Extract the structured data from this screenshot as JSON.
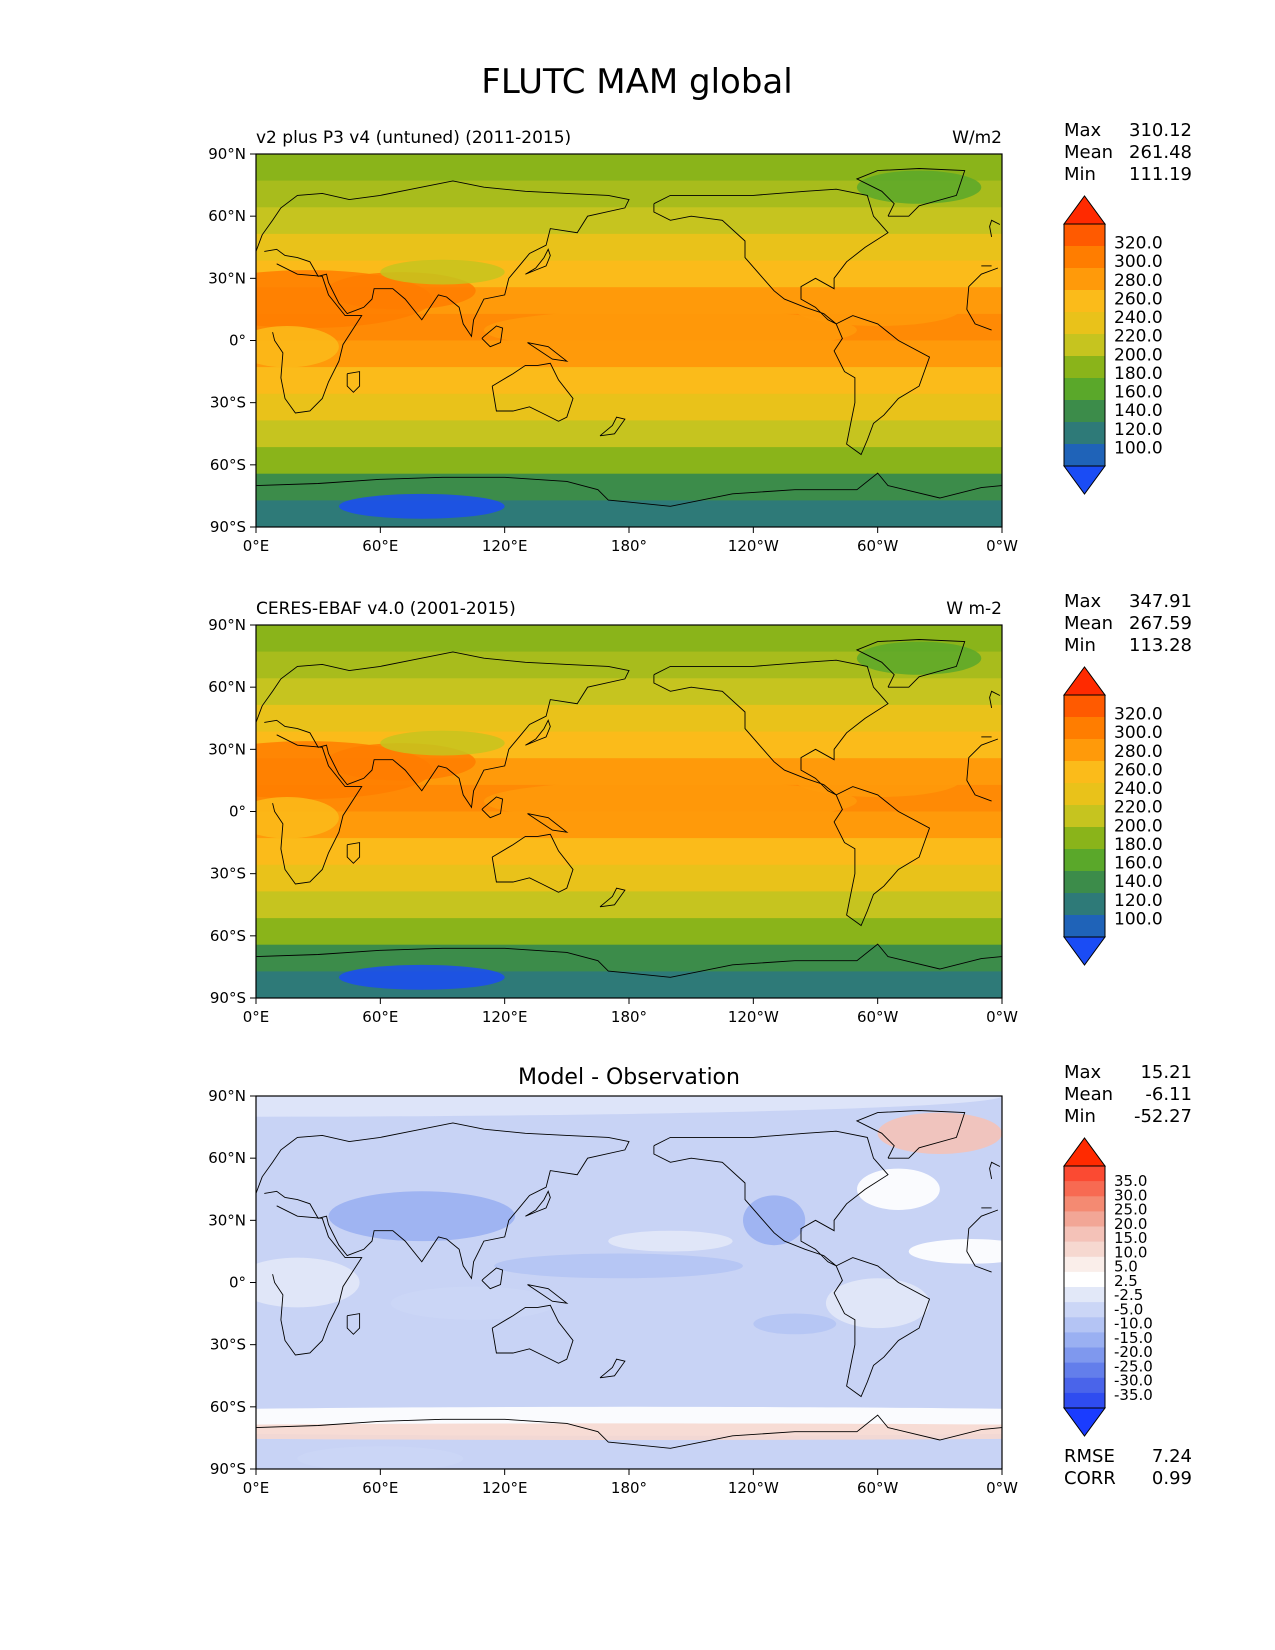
{
  "title": "FLUTC MAM global",
  "lon_ticks": [
    "0°E",
    "60°E",
    "120°E",
    "180°",
    "120°W",
    "60°W",
    "0°W"
  ],
  "lat_ticks": [
    "90°N",
    "60°N",
    "30°N",
    "0°",
    "30°S",
    "60°S",
    "90°S"
  ],
  "panels": [
    {
      "id": "model",
      "left_title": "v2 plus P3 v4 (untuned) (2011-2015)",
      "center_title": "",
      "units": "W/m2",
      "stats": [
        {
          "label": "Max",
          "value": "310.12"
        },
        {
          "label": "Mean",
          "value": "261.48"
        },
        {
          "label": "Min",
          "value": "111.19"
        }
      ],
      "colorbar_labels": [
        "320.0",
        "300.0",
        "280.0",
        "260.0",
        "240.0",
        "220.0",
        "200.0",
        "180.0",
        "160.0",
        "140.0",
        "120.0",
        "100.0"
      ],
      "footer": []
    },
    {
      "id": "obs",
      "left_title": "CERES-EBAF v4.0 (2001-2015)",
      "center_title": "",
      "units": "W m-2",
      "stats": [
        {
          "label": "Max",
          "value": "347.91"
        },
        {
          "label": "Mean",
          "value": "267.59"
        },
        {
          "label": "Min",
          "value": "113.28"
        }
      ],
      "colorbar_labels": [
        "320.0",
        "300.0",
        "280.0",
        "260.0",
        "240.0",
        "220.0",
        "200.0",
        "180.0",
        "160.0",
        "140.0",
        "120.0",
        "100.0"
      ],
      "footer": []
    },
    {
      "id": "diff",
      "left_title": "",
      "center_title": "Model - Observation",
      "units": "",
      "stats": [
        {
          "label": "Max",
          "value": "15.21"
        },
        {
          "label": "Mean",
          "value": "-6.11"
        },
        {
          "label": "Min",
          "value": "-52.27"
        }
      ],
      "colorbar_labels": [
        "35.0",
        "30.0",
        "25.0",
        "20.0",
        "15.0",
        "10.0",
        "5.0",
        "2.5",
        "-2.5",
        "-5.0",
        "-10.0",
        "-15.0",
        "-20.0",
        "-25.0",
        "-30.0",
        "-35.0"
      ],
      "footer": [
        {
          "label": "RMSE",
          "value": "7.24"
        },
        {
          "label": "CORR",
          "value": "0.99"
        }
      ]
    }
  ],
  "colormaps": {
    "abs": [
      "#ff2a00",
      "#ff5a00",
      "#ff7d00",
      "#ff9a0a",
      "#fbbb1a",
      "#e9c21a",
      "#c6c41f",
      "#8ab41a",
      "#5aa82a",
      "#3c8c4a",
      "#2e7a78",
      "#1f63b8",
      "#1a4cf5"
    ],
    "diff": [
      "#ff2a00",
      "#fb4a32",
      "#f76a52",
      "#f48a72",
      "#f2a696",
      "#f4c2b8",
      "#f6d8d0",
      "#faeeea",
      "#ffffff",
      "#e2e8f8",
      "#cbd6f6",
      "#b4c4f4",
      "#9ab0f2",
      "#7f98ee",
      "#637eeb",
      "#4a64ea",
      "#2f4cf0",
      "#1a3cff"
    ]
  },
  "map_style": {
    "coast_color": "#000000",
    "abs_band_colors_north_to_south": [
      "#8ab41a",
      "#a8bc1c",
      "#c6c41f",
      "#e9c21a",
      "#fbbb1a",
      "#ff9a0a",
      "#ff8a05",
      "#ff9a0a",
      "#fbbb1a",
      "#e9c21a",
      "#c6c41f",
      "#8ab41a",
      "#3c8c4a",
      "#2e7a78"
    ],
    "diff_base_color": "#c8d3f5"
  }
}
